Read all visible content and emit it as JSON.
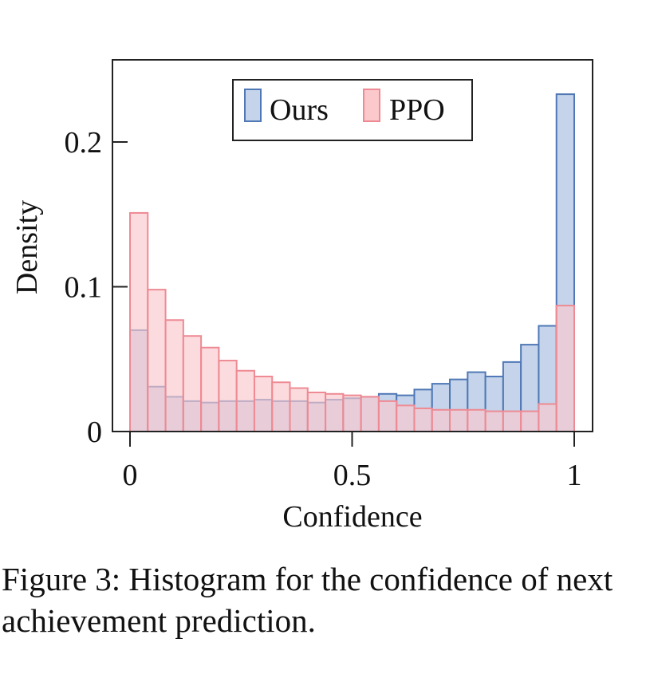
{
  "chart_data": {
    "type": "bar",
    "title": "",
    "xlabel": "Confidence",
    "ylabel": "Density",
    "xlim": [
      0,
      1
    ],
    "ylim": [
      0,
      0.24
    ],
    "xticks": [
      {
        "value": 0,
        "label": "0"
      },
      {
        "value": 0.5,
        "label": "0.5"
      },
      {
        "value": 1,
        "label": "1"
      }
    ],
    "yticks": [
      {
        "value": 0,
        "label": "0"
      },
      {
        "value": 0.1,
        "label": "0.1"
      },
      {
        "value": 0.2,
        "label": "0.2"
      }
    ],
    "legend_position": "top-center",
    "grid": false,
    "bin_edges": [
      0,
      0.04,
      0.08,
      0.12,
      0.16,
      0.2,
      0.24,
      0.28,
      0.32,
      0.36,
      0.4,
      0.44,
      0.48,
      0.52,
      0.56,
      0.6,
      0.64,
      0.68,
      0.72,
      0.76,
      0.8,
      0.84,
      0.88,
      0.92,
      0.96,
      1.0
    ],
    "series": [
      {
        "name": "Ours",
        "fill": "#c5d4ea",
        "stroke": "#4f78b5",
        "values": [
          0.07,
          0.031,
          0.024,
          0.021,
          0.02,
          0.021,
          0.021,
          0.022,
          0.021,
          0.021,
          0.02,
          0.022,
          0.023,
          0.024,
          0.026,
          0.025,
          0.029,
          0.033,
          0.036,
          0.041,
          0.038,
          0.048,
          0.06,
          0.073,
          0.233
        ]
      },
      {
        "name": "PPO",
        "fill": "#fbc8cc",
        "stroke": "#ee8a93",
        "values": [
          0.151,
          0.098,
          0.077,
          0.066,
          0.058,
          0.049,
          0.042,
          0.038,
          0.034,
          0.03,
          0.027,
          0.026,
          0.025,
          0.024,
          0.021,
          0.018,
          0.016,
          0.015,
          0.015,
          0.015,
          0.014,
          0.014,
          0.014,
          0.019,
          0.087
        ]
      }
    ]
  },
  "caption": "Figure 3: Histogram for the confidence of next achievement prediction."
}
